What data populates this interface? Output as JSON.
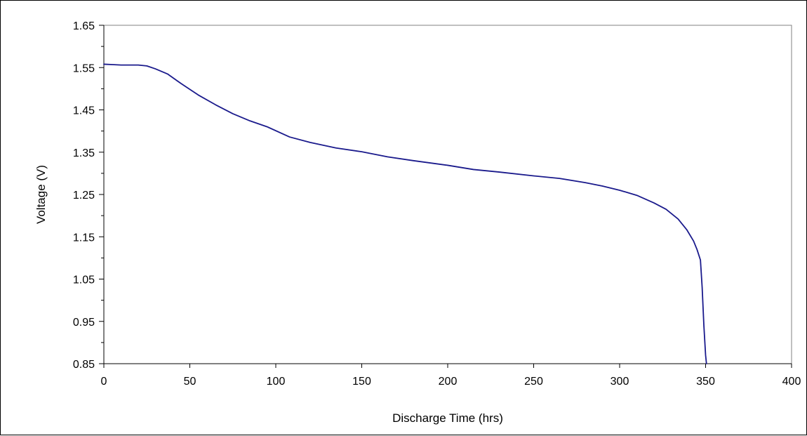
{
  "chart_data": {
    "type": "line",
    "title": "",
    "xlabel": "Discharge Time (hrs)",
    "ylabel": "Voltage (V)",
    "xlim": [
      0,
      400
    ],
    "ylim": [
      0.85,
      1.65
    ],
    "x_ticks": [
      "0",
      "50",
      "100",
      "150",
      "200",
      "250",
      "300",
      "350",
      "400"
    ],
    "y_ticks": [
      "1.65",
      "1.55",
      "1.45",
      "1.35",
      "1.25",
      "1.15",
      "1.05",
      "0.95",
      "0.85"
    ],
    "grid": false,
    "legend": "none",
    "series": [
      {
        "color": "#1a1a8c",
        "points": [
          [
            0,
            1.558
          ],
          [
            5,
            1.557
          ],
          [
            10,
            1.556
          ],
          [
            20,
            1.556
          ],
          [
            25,
            1.554
          ],
          [
            30,
            1.547
          ],
          [
            37,
            1.535
          ],
          [
            45,
            1.512
          ],
          [
            55,
            1.485
          ],
          [
            65,
            1.462
          ],
          [
            75,
            1.441
          ],
          [
            85,
            1.424
          ],
          [
            95,
            1.41
          ],
          [
            108,
            1.386
          ],
          [
            120,
            1.373
          ],
          [
            135,
            1.36
          ],
          [
            150,
            1.351
          ],
          [
            165,
            1.339
          ],
          [
            180,
            1.33
          ],
          [
            200,
            1.319
          ],
          [
            215,
            1.309
          ],
          [
            230,
            1.303
          ],
          [
            250,
            1.294
          ],
          [
            265,
            1.288
          ],
          [
            280,
            1.278
          ],
          [
            290,
            1.27
          ],
          [
            300,
            1.26
          ],
          [
            310,
            1.248
          ],
          [
            320,
            1.23
          ],
          [
            327,
            1.215
          ],
          [
            334,
            1.192
          ],
          [
            339,
            1.167
          ],
          [
            343,
            1.14
          ],
          [
            345,
            1.12
          ],
          [
            347,
            1.095
          ],
          [
            348,
            1.03
          ],
          [
            349,
            0.94
          ],
          [
            350,
            0.87
          ],
          [
            350.5,
            0.85
          ]
        ]
      }
    ]
  }
}
